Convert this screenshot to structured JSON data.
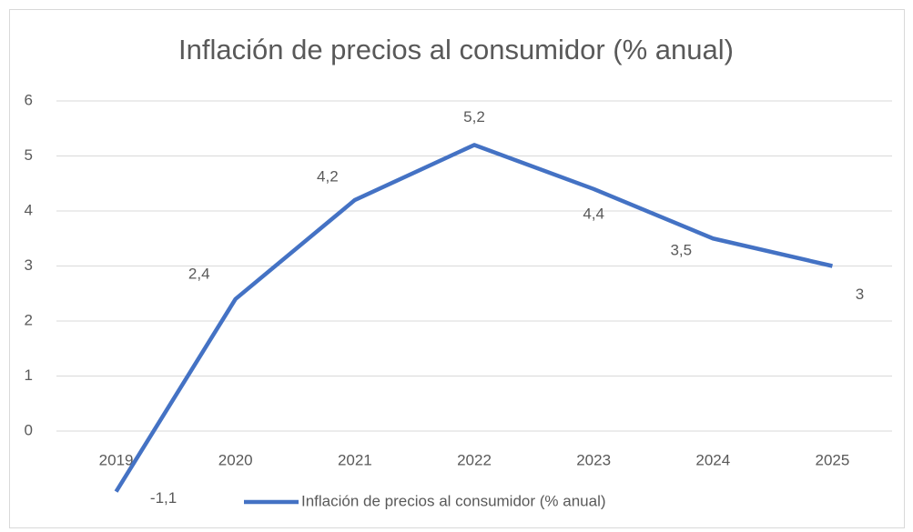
{
  "chart_data": {
    "type": "line",
    "title": "Inflación de precios al consumidor (% anual)",
    "categories": [
      "2019",
      "2020",
      "2021",
      "2022",
      "2023",
      "2024",
      "2025"
    ],
    "series": [
      {
        "name": "Inflación de precios al consumidor (% anual)",
        "color": "#4472c4",
        "values": [
          -1.1,
          2.4,
          4.2,
          5.2,
          4.4,
          3.5,
          3
        ],
        "value_labels": [
          "-1,1",
          "2,4",
          "4,2",
          "5,2",
          "4,4",
          "3,5",
          "3"
        ]
      }
    ],
    "ylim": [
      0,
      6
    ],
    "yticks": [
      0,
      1,
      2,
      3,
      4,
      5,
      6
    ],
    "grid": true,
    "legend": "bottom"
  }
}
